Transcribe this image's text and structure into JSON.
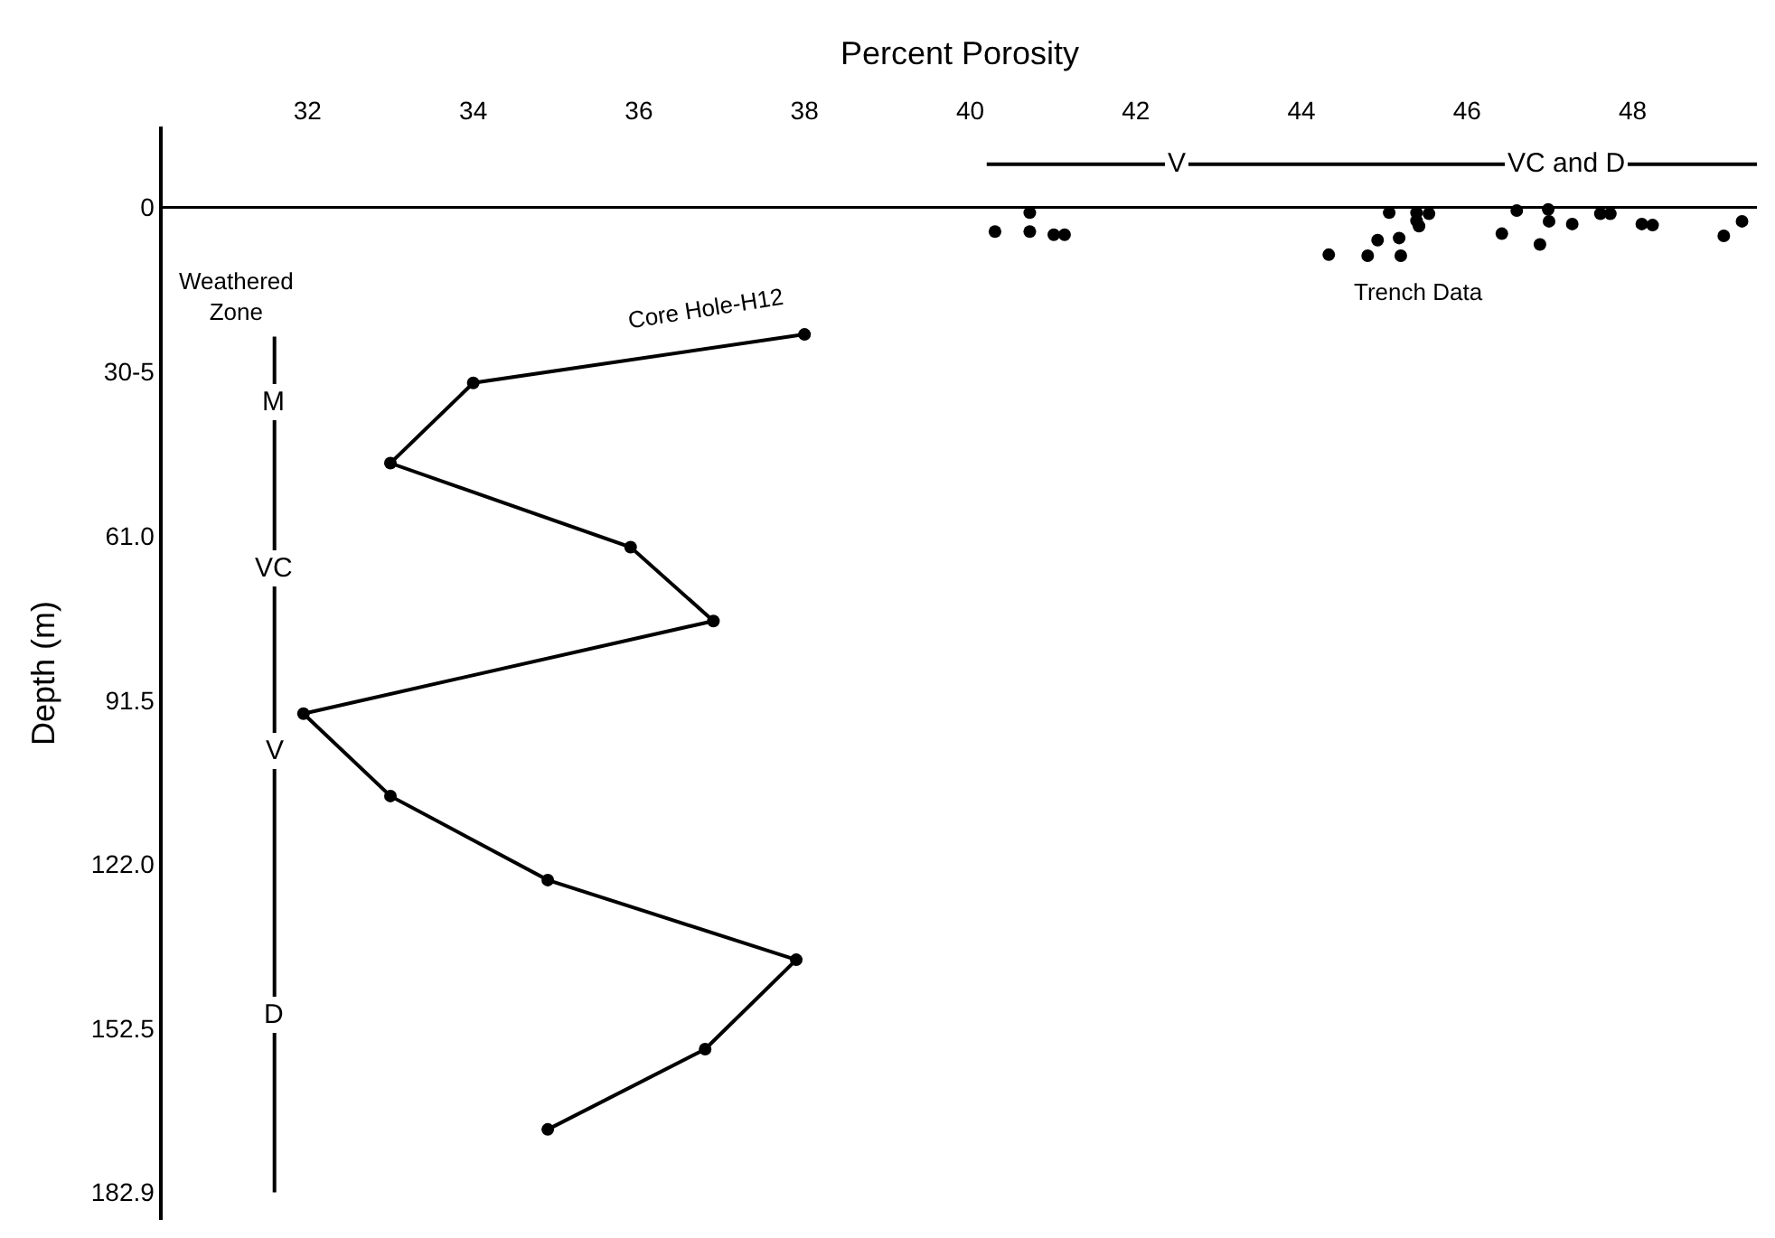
{
  "chart_data": {
    "type": "line",
    "xlabel": "Percent Porosity",
    "ylabel": "Depth (m)",
    "xlim": [
      30.25,
      49.5
    ],
    "xticks": [
      32,
      34,
      36,
      38,
      40,
      42,
      44,
      46,
      48
    ],
    "ylim": [
      188,
      -15
    ],
    "yticks": [
      0,
      {
        "value": 30.5,
        "label": "30-5"
      },
      {
        "value": 61.0,
        "label": "61.0"
      },
      {
        "value": 91.5,
        "label": "91.5"
      },
      {
        "value": 122.0,
        "label": "122.0"
      },
      {
        "value": 152.5,
        "label": "152.5"
      },
      {
        "value": 182.9,
        "label": "182.9"
      }
    ],
    "legend": false,
    "ref_lines": [
      {
        "axis": "y",
        "value": 0,
        "color": "#000000",
        "line_style": "solid"
      }
    ],
    "series": [
      {
        "name": "Core Hole-H12",
        "marker": "circle",
        "color": "#000000",
        "x": [
          38.0,
          34.0,
          33.0,
          35.9,
          36.9,
          31.95,
          33.0,
          34.9,
          37.9,
          36.8,
          34.9
        ],
        "values": [
          23.6,
          32.6,
          47.5,
          63.1,
          76.8,
          94.0,
          109.3,
          124.9,
          139.7,
          156.3,
          171.2
        ]
      },
      {
        "name": "Trench Data",
        "type": "scatter",
        "marker": "circle",
        "color": "#000000",
        "x": [
          40.3,
          40.72,
          40.72,
          41.01,
          41.14,
          44.33,
          44.8,
          44.92,
          45.06,
          45.18,
          45.2,
          45.39,
          45.39,
          45.42,
          45.54,
          46.42,
          46.6,
          46.88,
          46.98,
          46.99,
          47.27,
          47.61,
          47.73,
          48.11,
          48.24,
          49.1,
          49.32
        ],
        "values": [
          4.5,
          1.0,
          4.5,
          5.1,
          5.1,
          8.8,
          9.0,
          6.1,
          1.0,
          5.7,
          9.0,
          1.0,
          2.5,
          3.5,
          1.2,
          4.9,
          0.6,
          6.9,
          0.4,
          2.6,
          3.1,
          1.2,
          1.2,
          3.1,
          3.3,
          5.3,
          2.6
        ]
      },
      {
        "marker": "none",
        "color": "#000000",
        "x": [
          31.6,
          31.6,
          31.6,
          31.6,
          31.6
        ],
        "values": [
          24,
          48.4,
          85,
          117,
          182.9
        ]
      },
      {
        "marker": "none",
        "color": "#000000",
        "x": [
          40.2,
          45,
          49.5
        ],
        "values": [
          -8,
          -8,
          -8
        ]
      }
    ],
    "annotations": [
      "Weathered Zone",
      {
        "text": "M",
        "x": 31.6,
        "y": 36
      },
      {
        "text": "VC",
        "x": 31.6,
        "y": 67
      },
      {
        "text": "V",
        "x": 31.6,
        "y": 101
      },
      {
        "text": "D",
        "x": 31.6,
        "y": 150
      },
      {
        "text": "V",
        "x": 42.5,
        "y": -8
      },
      {
        "text": "VC and D",
        "x": 47.2,
        "y": -8
      }
    ]
  }
}
